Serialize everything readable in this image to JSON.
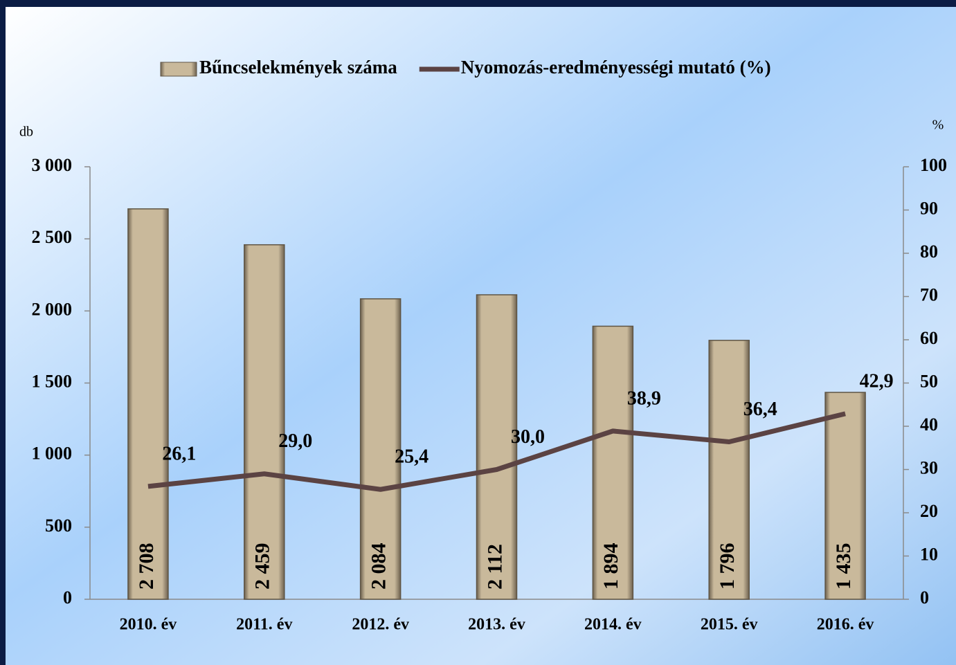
{
  "chart_data": {
    "type": "bar_line",
    "categories": [
      "2010. év",
      "2011. év",
      "2012. év",
      "2013. év",
      "2014. év",
      "2015. év",
      "2016. év"
    ],
    "series": [
      {
        "name": "Bűncselekmények száma",
        "type": "bar",
        "color": "#c9b99b",
        "values": [
          2708,
          2459,
          2084,
          2112,
          1894,
          1796,
          1435
        ],
        "value_labels": [
          "2 708",
          "2 459",
          "2 084",
          "2 112",
          "1 894",
          "1 796",
          "1 435"
        ]
      },
      {
        "name": "Nyomozás-eredményességi mutató (%)",
        "type": "line",
        "axis": "y2",
        "color": "#5b4343",
        "values": [
          26.1,
          29.0,
          25.4,
          30.0,
          38.9,
          36.4,
          42.9
        ],
        "value_labels": [
          "26,1",
          "29,0",
          "25,4",
          "30,0",
          "38,9",
          "36,4",
          "42,9"
        ]
      }
    ],
    "y_label": "db",
    "y2_label": "%",
    "ylim": [
      0,
      3000
    ],
    "yticks": [
      0,
      500,
      {
        "value": 1000,
        "label": "1 000"
      },
      {
        "value": 1500,
        "label": "1 500"
      },
      {
        "value": 2000,
        "label": "2 000"
      },
      {
        "value": 2500,
        "label": "2 500"
      },
      {
        "value": 3000,
        "label": "3 000"
      }
    ],
    "y2lim": [
      0,
      100
    ],
    "y2ticks": [
      0,
      10,
      20,
      30,
      40,
      50,
      60,
      70,
      80,
      90,
      100
    ],
    "legend": "top"
  }
}
